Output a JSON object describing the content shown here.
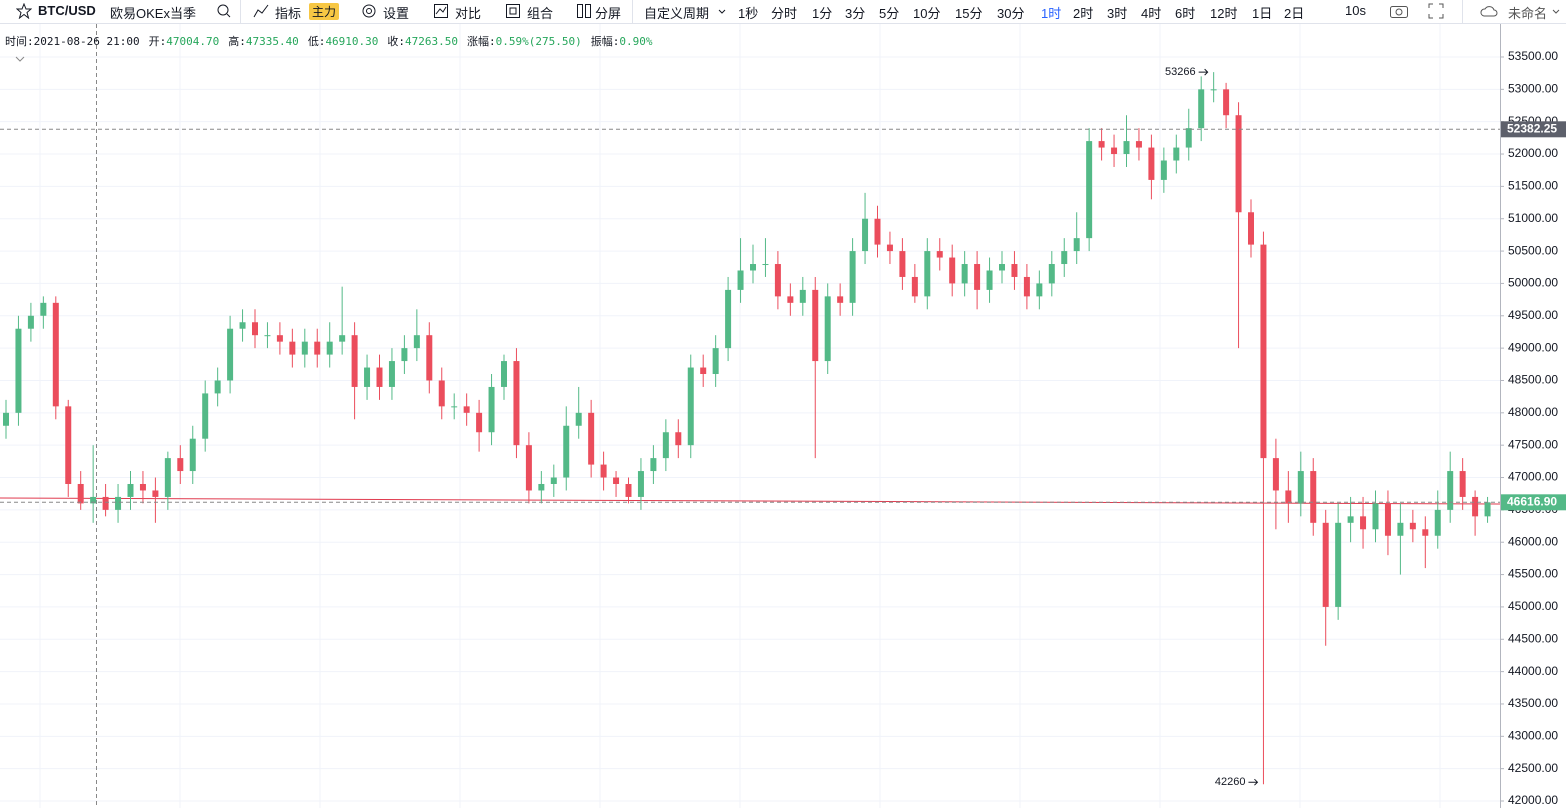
{
  "toolbar": {
    "symbol": "BTC/USD",
    "exchange": "欧易OKEx当季",
    "indicator": "指标",
    "badge": "主力",
    "settings": "设置",
    "compare": "对比",
    "combine": "组合",
    "split": "分屏",
    "custom_period": "自定义周期",
    "periods": [
      "1秒",
      "分时",
      "1分",
      "3分",
      "5分",
      "10分",
      "15分",
      "30分",
      "1时",
      "2时",
      "3时",
      "4时",
      "6时",
      "12时",
      "1日",
      "2日"
    ],
    "active_period": "1时",
    "refresh": "10s",
    "layout_name": "未命名"
  },
  "info": [
    {
      "label": "时间:",
      "value": "2021-08-26 21:00"
    },
    {
      "label": "开:",
      "value": "47004.70"
    },
    {
      "label": "高:",
      "value": "47335.40"
    },
    {
      "label": "低:",
      "value": "46910.30"
    },
    {
      "label": "收:",
      "value": "47263.50"
    },
    {
      "label": "涨幅:",
      "value": "0.59%(275.50)"
    },
    {
      "label": "振幅:",
      "value": "0.90%"
    }
  ],
  "chart_data": {
    "type": "candlestick",
    "up_color": "#53b987",
    "down_color": "#eb4d5c",
    "grid": true,
    "ylim": [
      41892,
      53948
    ],
    "yticks": [
      {
        "value": 42000,
        "label": "42000.00"
      },
      {
        "value": 42500,
        "label": "42500.00"
      },
      {
        "value": 43000,
        "label": "43000.00"
      },
      {
        "value": 43500,
        "label": "43500.00"
      },
      {
        "value": 44000,
        "label": "44000.00"
      },
      {
        "value": 44500,
        "label": "44500.00"
      },
      {
        "value": 45000,
        "label": "45000.00"
      },
      {
        "value": 45500,
        "label": "45500.00"
      },
      {
        "value": 46000,
        "label": "46000.00"
      },
      {
        "value": 46500,
        "label": "46500.00"
      },
      {
        "value": 47000,
        "label": "47000.00"
      },
      {
        "value": 47500,
        "label": "47500.00"
      },
      {
        "value": 48000,
        "label": "48000.00"
      },
      {
        "value": 48500,
        "label": "48500.00"
      },
      {
        "value": 49000,
        "label": "49000.00"
      },
      {
        "value": 49500,
        "label": "49500.00"
      },
      {
        "value": 50000,
        "label": "50000.00"
      },
      {
        "value": 50500,
        "label": "50500.00"
      },
      {
        "value": 51000,
        "label": "51000.00"
      },
      {
        "value": 51500,
        "label": "51500.00"
      },
      {
        "value": 52000,
        "label": "52000.00"
      },
      {
        "value": 52500,
        "label": "52500.00"
      },
      {
        "value": 53000,
        "label": "53000.00"
      },
      {
        "value": 53500,
        "label": "53500.00"
      }
    ],
    "open": [
      47800,
      48000,
      49300,
      49500,
      49700,
      48100,
      46900,
      46600,
      46700,
      46500,
      46700,
      46900,
      46800,
      46700,
      47300,
      47100,
      47600,
      48300,
      48500,
      49300,
      49400,
      49200,
      49200,
      49100,
      48900,
      49100,
      48900,
      49100,
      49200,
      48400,
      48700,
      48400,
      48800,
      49000,
      49200,
      48500,
      48100,
      48100,
      48000,
      47700,
      48400,
      48800,
      47500,
      46800,
      46900,
      47000,
      47800,
      48000,
      47200,
      47000,
      46900,
      46700,
      47100,
      47300,
      47700,
      47500,
      48700,
      48600,
      49000,
      49900,
      50200,
      50300,
      50300,
      49800,
      49700,
      49900,
      48800,
      49800,
      49700,
      50500,
      51000,
      50600,
      50500,
      50100,
      49800,
      50500,
      50400,
      50000,
      50300,
      49900,
      50200,
      50300,
      50100,
      49800,
      50000,
      50300,
      50500,
      50700,
      52200,
      52100,
      52000,
      52200,
      52100,
      51600,
      51900,
      52100,
      52400,
      53000,
      53000,
      52600,
      51100,
      50600,
      47300,
      46800,
      46600,
      47100,
      46300,
      45000,
      46300,
      46400,
      46200,
      46600,
      46100,
      46300,
      46200,
      46100,
      46500,
      47100,
      46700,
      46400
    ],
    "high": [
      48200,
      49500,
      49700,
      49800,
      49800,
      48200,
      47100,
      47500,
      46900,
      46900,
      47100,
      47100,
      47000,
      47400,
      47500,
      47800,
      48500,
      48700,
      49500,
      49600,
      49600,
      49400,
      49400,
      49300,
      49300,
      49300,
      49400,
      49950,
      49400,
      48900,
      48900,
      49000,
      49200,
      49600,
      49400,
      48700,
      48300,
      48300,
      48200,
      48600,
      48900,
      49000,
      47700,
      47100,
      47200,
      48100,
      48400,
      48200,
      47400,
      47100,
      47000,
      47300,
      47500,
      47900,
      47900,
      48900,
      48900,
      49200,
      50100,
      50700,
      50600,
      50700,
      50500,
      50000,
      50100,
      50100,
      50000,
      50000,
      50700,
      51400,
      51200,
      50800,
      50700,
      50300,
      50700,
      50700,
      50600,
      50500,
      50500,
      50400,
      50500,
      50500,
      50300,
      50200,
      50500,
      50700,
      51100,
      52400,
      52400,
      52300,
      52600,
      52400,
      52300,
      52100,
      52300,
      52700,
      53200,
      53266,
      53100,
      52800,
      51300,
      50800,
      47600,
      47100,
      47400,
      47300,
      46500,
      46600,
      46700,
      46700,
      46800,
      46800,
      46600,
      46500,
      46400,
      46800,
      47400,
      47300,
      46800,
      46700
    ],
    "low": [
      47600,
      47800,
      49100,
      49300,
      47900,
      46700,
      46500,
      46300,
      46400,
      46300,
      46500,
      46600,
      46300,
      46500,
      46900,
      46900,
      47400,
      48100,
      48300,
      49100,
      49000,
      49000,
      48900,
      48700,
      48700,
      48700,
      48700,
      48900,
      47900,
      48200,
      48200,
      48200,
      48600,
      48800,
      48300,
      47900,
      47900,
      47800,
      47400,
      47500,
      48200,
      47300,
      46600,
      46600,
      46700,
      46800,
      47600,
      47000,
      46800,
      46700,
      46600,
      46500,
      46900,
      47100,
      47300,
      47300,
      48400,
      48400,
      48800,
      49700,
      50000,
      50100,
      49600,
      49500,
      49500,
      47300,
      48600,
      49500,
      49500,
      50300,
      50400,
      50300,
      49900,
      49700,
      49600,
      50200,
      49800,
      49800,
      49600,
      49700,
      50000,
      49900,
      49600,
      49600,
      49800,
      50100,
      50300,
      50500,
      51900,
      51800,
      51800,
      51900,
      51300,
      51400,
      51700,
      51900,
      52200,
      52800,
      52400,
      49000,
      50400,
      42260,
      46200,
      46300,
      46400,
      46100,
      44400,
      44800,
      46000,
      45900,
      46000,
      45800,
      45500,
      46000,
      45600,
      45900,
      46300,
      46500,
      46100,
      46300
    ],
    "close": [
      48000,
      49300,
      49500,
      49700,
      48100,
      46900,
      46600,
      46700,
      46500,
      46700,
      46900,
      46800,
      46700,
      47300,
      47100,
      47600,
      48300,
      48500,
      49300,
      49400,
      49200,
      49200,
      49100,
      48900,
      49100,
      48900,
      49100,
      49200,
      48400,
      48700,
      48400,
      48800,
      49000,
      49200,
      48500,
      48100,
      48100,
      48000,
      47700,
      48400,
      48800,
      47500,
      46800,
      46900,
      47000,
      47800,
      48000,
      47200,
      47000,
      46900,
      46700,
      47100,
      47300,
      47700,
      47500,
      48700,
      48600,
      49000,
      49900,
      50200,
      50300,
      50300,
      49800,
      49700,
      49900,
      48800,
      49800,
      49700,
      50500,
      51000,
      50600,
      50500,
      50100,
      49800,
      50500,
      50400,
      50000,
      50300,
      49900,
      50200,
      50300,
      50100,
      49800,
      50000,
      50300,
      50500,
      50700,
      52200,
      52100,
      52000,
      52200,
      52100,
      51600,
      51900,
      52100,
      52400,
      53000,
      53000,
      52600,
      51100,
      50600,
      47300,
      46800,
      46600,
      47100,
      46300,
      45000,
      46300,
      46400,
      46200,
      46600,
      46100,
      46300,
      46200,
      46100,
      46500,
      47100,
      46700,
      46400,
      46616.9
    ],
    "max_label": 53266,
    "min_label": 42260,
    "crosshair_price": 52382.25,
    "crosshair_color": "#5d606b",
    "last_price": {
      "value": 46616.9,
      "label": "46616.90"
    },
    "last_price_color": "#53b987"
  }
}
